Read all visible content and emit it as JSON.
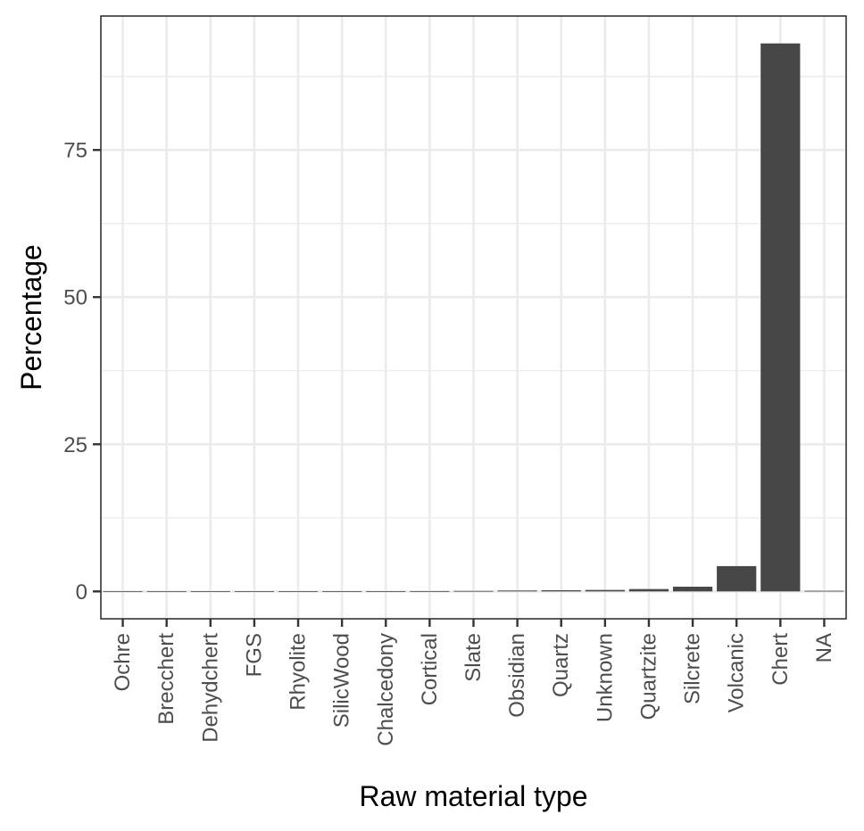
{
  "chart_data": {
    "type": "bar",
    "categories": [
      "Ochre",
      "Brecchert",
      "Dehydchert",
      "FGS",
      "Rhyolite",
      "SilicWood",
      "Chalcedony",
      "Cortical",
      "Slate",
      "Obsidian",
      "Quartz",
      "Unknown",
      "Quartzite",
      "Silcrete",
      "Volcanic",
      "Chert",
      "NA"
    ],
    "values": [
      0.01,
      0.01,
      0.02,
      0.02,
      0.03,
      0.03,
      0.04,
      0.05,
      0.08,
      0.15,
      0.2,
      0.25,
      0.4,
      0.8,
      4.3,
      93.1,
      0.1
    ],
    "title": "",
    "xlabel": "Raw material type",
    "ylabel": "Percentage",
    "ylim": [
      -4.65,
      97.75
    ],
    "yticks": [
      0,
      25,
      50,
      75
    ],
    "ytick_labels": [
      "0",
      "25",
      "50",
      "75"
    ],
    "grid": true,
    "colors": {
      "bar": "#474747",
      "grid": "#ebebeb",
      "border": "#333333",
      "tick_text": "#4d4d4d"
    }
  }
}
